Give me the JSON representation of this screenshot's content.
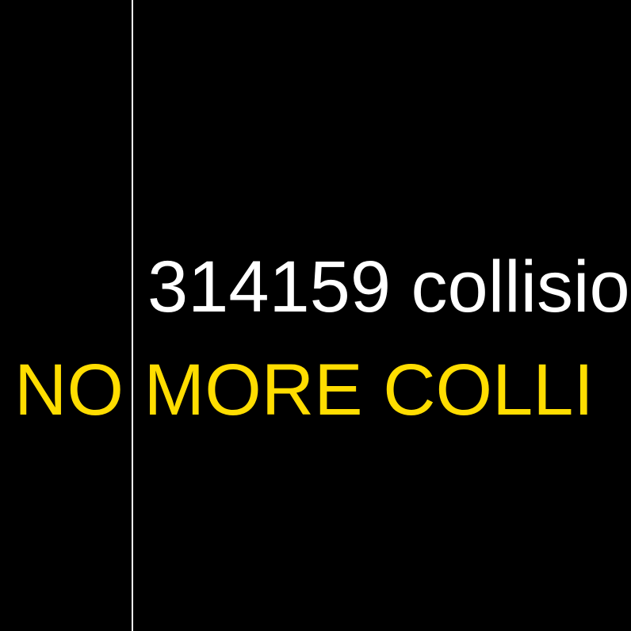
{
  "colors": {
    "background": "#000000",
    "wall": "#ffffff",
    "counter_text": "#ffffff",
    "banner_text": "#ffdd00"
  },
  "counter": {
    "text": "314159 collisio"
  },
  "banner": {
    "text": "NO MORE COLLI"
  }
}
